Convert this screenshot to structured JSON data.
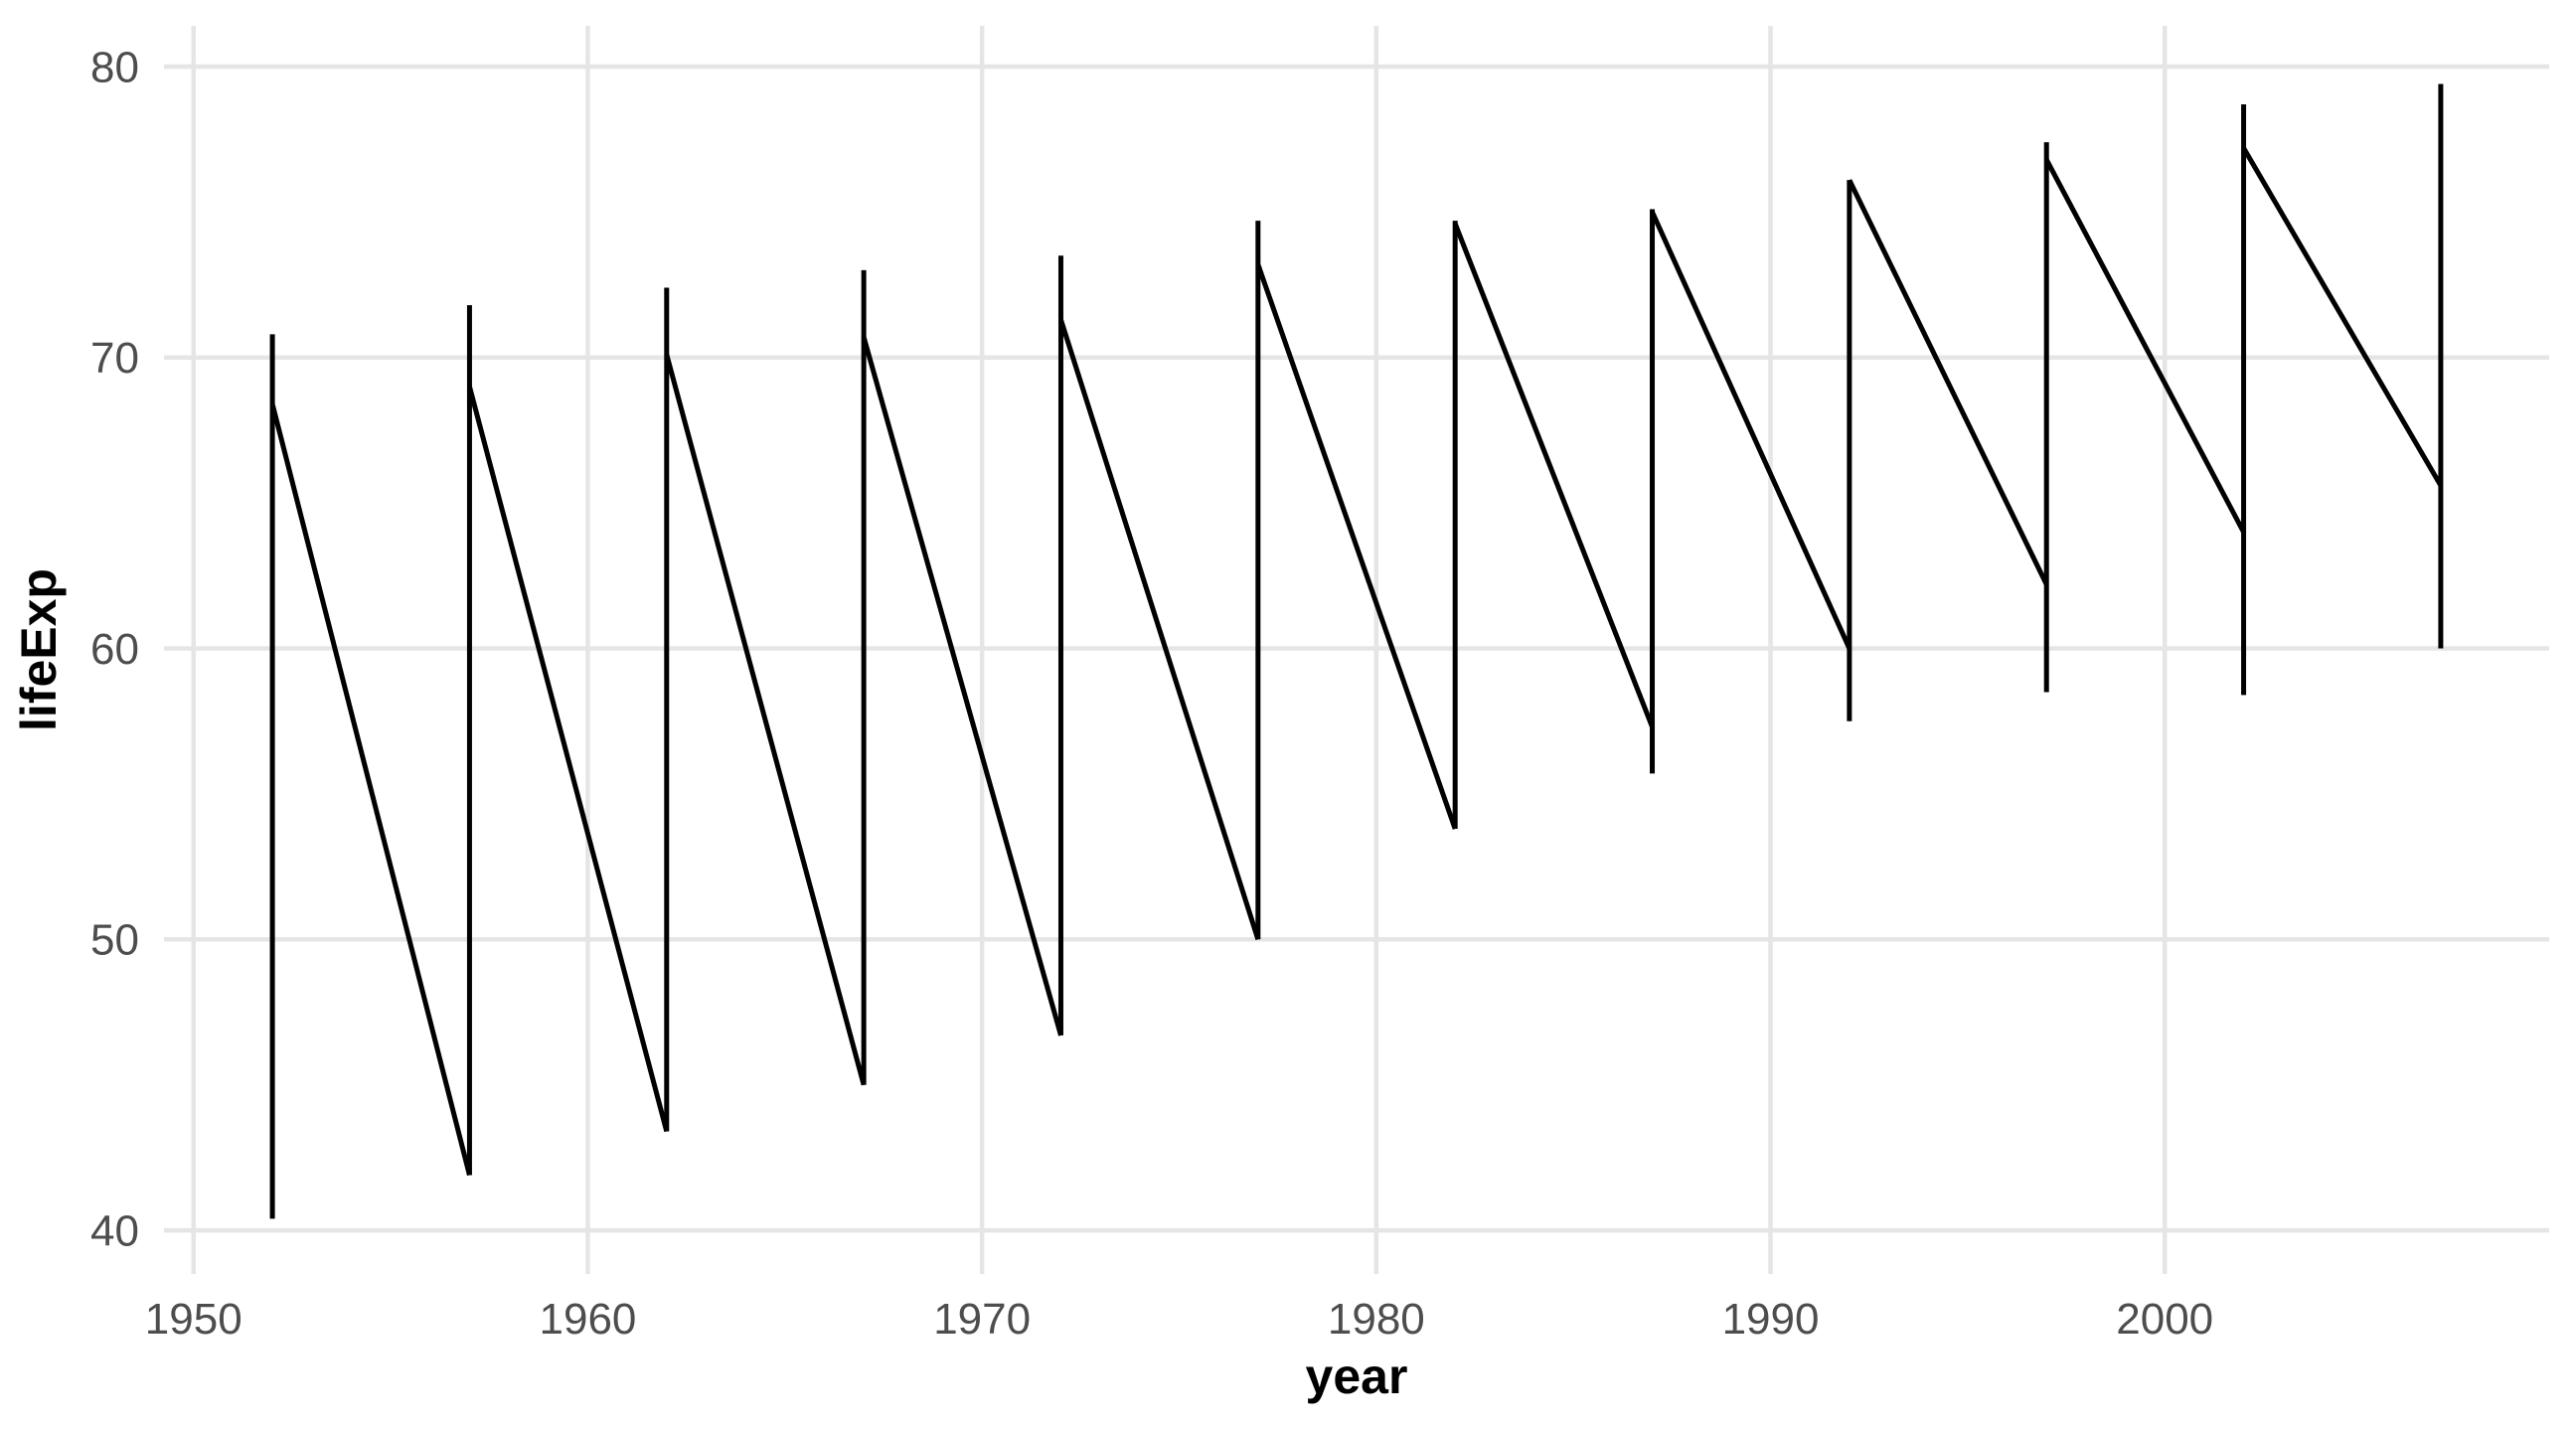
{
  "figure": {
    "background_color": "#ffffff",
    "grid_color": "#e5e5e5",
    "data_line_color": "#000000",
    "tick_label_color": "#4d4d4d",
    "axis_title_color": "#000000"
  },
  "chart_data": {
    "type": "line",
    "title": "",
    "xlabel": "year",
    "ylabel": "lifeExp",
    "x_ticks": [
      1950,
      1960,
      1970,
      1980,
      1990,
      2000
    ],
    "x_tick_labels": [
      "1950",
      "1960",
      "1970",
      "1980",
      "1990",
      "2000"
    ],
    "y_ticks": [
      40,
      50,
      60,
      70,
      80
    ],
    "y_tick_labels": [
      "40",
      "50",
      "60",
      "70",
      "80"
    ],
    "xlim": [
      1949.25,
      2009.75
    ],
    "ylim": [
      38.5,
      81.4
    ],
    "grid": "major-only",
    "legend": "none",
    "line_width": 5,
    "description": "Single unbroken black polyline forming a sawtooth: at each 5-year period a vertical segment spans all lifeExp values for that year, then a long descending connector runs to the next year's entry value.",
    "years": [
      1952,
      1957,
      1962,
      1967,
      1972,
      1977,
      1982,
      1987,
      1992,
      1997,
      2002,
      2007
    ],
    "verticals": [
      {
        "year": 1952,
        "min": 40.4,
        "max": 70.8
      },
      {
        "year": 1957,
        "min": 41.9,
        "max": 71.8
      },
      {
        "year": 1962,
        "min": 43.4,
        "max": 72.4
      },
      {
        "year": 1967,
        "min": 45.0,
        "max": 73.0
      },
      {
        "year": 1972,
        "min": 46.7,
        "max": 73.5
      },
      {
        "year": 1977,
        "min": 50.0,
        "max": 74.7
      },
      {
        "year": 1982,
        "min": 53.8,
        "max": 74.7
      },
      {
        "year": 1987,
        "min": 55.7,
        "max": 75.1
      },
      {
        "year": 1992,
        "min": 57.5,
        "max": 76.1
      },
      {
        "year": 1997,
        "min": 58.5,
        "max": 77.4
      },
      {
        "year": 2002,
        "min": 58.4,
        "max": 78.7
      },
      {
        "year": 2007,
        "min": 60.0,
        "max": 79.4
      }
    ],
    "connectors": [
      {
        "from_year": 1952,
        "from_lifeExp": 68.4,
        "to_year": 1957,
        "to_lifeExp": 41.9
      },
      {
        "from_year": 1957,
        "from_lifeExp": 69.0,
        "to_year": 1962,
        "to_lifeExp": 43.4
      },
      {
        "from_year": 1962,
        "from_lifeExp": 70.1,
        "to_year": 1967,
        "to_lifeExp": 45.0
      },
      {
        "from_year": 1967,
        "from_lifeExp": 70.7,
        "to_year": 1972,
        "to_lifeExp": 46.7
      },
      {
        "from_year": 1972,
        "from_lifeExp": 71.3,
        "to_year": 1977,
        "to_lifeExp": 50.0
      },
      {
        "from_year": 1977,
        "from_lifeExp": 73.2,
        "to_year": 1982,
        "to_lifeExp": 53.8
      },
      {
        "from_year": 1982,
        "from_lifeExp": 74.6,
        "to_year": 1987,
        "to_lifeExp": 57.3
      },
      {
        "from_year": 1987,
        "from_lifeExp": 75.0,
        "to_year": 1992,
        "to_lifeExp": 60.0
      },
      {
        "from_year": 1992,
        "from_lifeExp": 76.1,
        "to_year": 1997,
        "to_lifeExp": 62.2
      },
      {
        "from_year": 1997,
        "from_lifeExp": 76.8,
        "to_year": 2002,
        "to_lifeExp": 64.0
      },
      {
        "from_year": 2002,
        "from_lifeExp": 77.2,
        "to_year": 2007,
        "to_lifeExp": 65.6
      }
    ]
  }
}
